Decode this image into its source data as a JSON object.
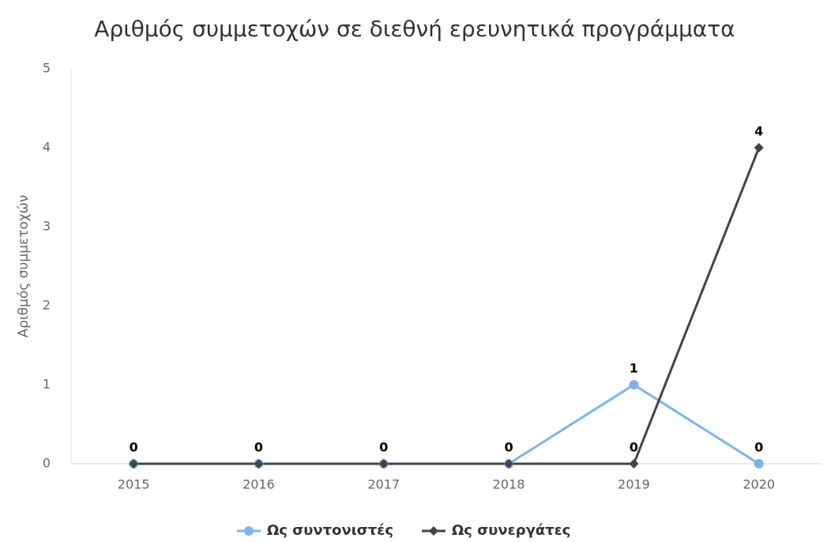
{
  "chart_data": {
    "type": "line",
    "title": "Αριθμός συμμετοχών σε διεθνή ερευνητικά προγράμματα",
    "y_label": "Αριθμός συμμετοχών",
    "categories": [
      "2015",
      "2016",
      "2017",
      "2018",
      "2019",
      "2020"
    ],
    "series": [
      {
        "name": "Ως συντονιστές",
        "color": "#7cb5ec",
        "marker": "circle",
        "values": [
          0,
          0,
          0,
          0,
          1,
          0
        ]
      },
      {
        "name": "Ως συνεργάτες",
        "color": "#434348",
        "marker": "diamond",
        "values": [
          0,
          0,
          0,
          0,
          0,
          4
        ]
      }
    ],
    "ylim": [
      0,
      5
    ],
    "yticks": [
      0,
      1,
      2,
      3,
      4,
      5
    ],
    "grid": false,
    "legend": "bottom"
  }
}
